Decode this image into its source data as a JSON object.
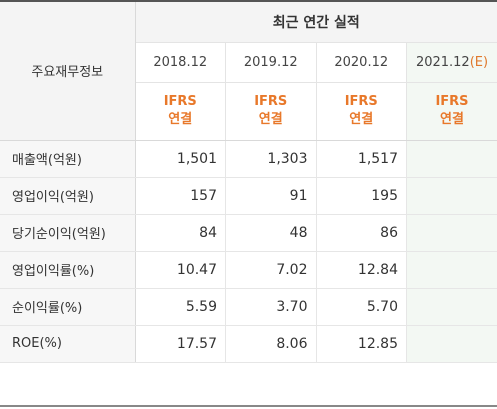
{
  "table": {
    "metric_header": "주요재무정보",
    "group_title": "최근 연간 실적",
    "years": [
      {
        "label": "2018.12",
        "suffix": ""
      },
      {
        "label": "2019.12",
        "suffix": ""
      },
      {
        "label": "2020.12",
        "suffix": ""
      },
      {
        "label": "2021.12",
        "suffix": "(E)"
      }
    ],
    "basis": [
      {
        "line1": "IFRS",
        "line2": "연결"
      },
      {
        "line1": "IFRS",
        "line2": "연결"
      },
      {
        "line1": "IFRS",
        "line2": "연결"
      },
      {
        "line1": "IFRS",
        "line2": "연결"
      }
    ],
    "rows": [
      {
        "label": "매출액(억원)",
        "values": [
          "1,501",
          "1,303",
          "1,517",
          ""
        ]
      },
      {
        "label": "영업이익(억원)",
        "values": [
          "157",
          "91",
          "195",
          ""
        ]
      },
      {
        "label": "당기순이익(억원)",
        "values": [
          "84",
          "48",
          "86",
          ""
        ]
      },
      {
        "label": "영업이익률(%)",
        "values": [
          "10.47",
          "7.02",
          "12.84",
          ""
        ]
      },
      {
        "label": "순이익률(%)",
        "values": [
          "5.59",
          "3.70",
          "5.70",
          ""
        ]
      },
      {
        "label": "ROE(%)",
        "values": [
          "17.57",
          "8.06",
          "12.85",
          ""
        ]
      }
    ]
  },
  "colors": {
    "accent_orange": "#e8782a",
    "estimate_bg": "#f3f8f3",
    "header_bg": "#f4f4f4"
  }
}
